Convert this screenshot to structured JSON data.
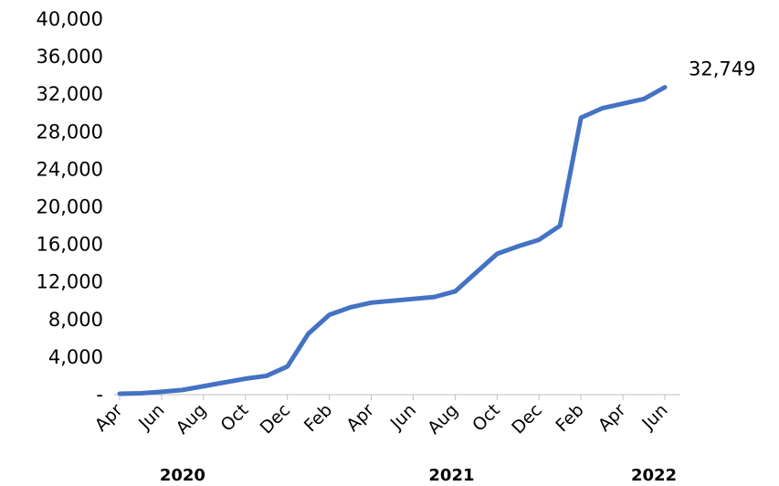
{
  "chart_data": {
    "type": "line",
    "title": "",
    "xlabel": "",
    "ylabel": "",
    "ylim": [
      0,
      40000
    ],
    "y_ticks": [
      0,
      4000,
      8000,
      12000,
      16000,
      20000,
      24000,
      28000,
      32000,
      36000,
      40000
    ],
    "y_tick_labels": [
      "-",
      "4,000",
      "8,000",
      "12,000",
      "16,000",
      "20,000",
      "24,000",
      "28,000",
      "32,000",
      "36,000",
      "40,000"
    ],
    "x_tick_labels": [
      "Apr",
      "Jun",
      "Aug",
      "Oct",
      "Dec",
      "Feb",
      "Apr",
      "Jun",
      "Aug",
      "Oct",
      "Dec",
      "Feb",
      "Apr",
      "Jun"
    ],
    "x_tick_dates": [
      "2020-04",
      "2020-06",
      "2020-08",
      "2020-10",
      "2020-12",
      "2021-02",
      "2021-04",
      "2021-06",
      "2021-08",
      "2021-10",
      "2021-12",
      "2022-02",
      "2022-04",
      "2022-06"
    ],
    "year_labels": [
      "2020",
      "2021",
      "2022"
    ],
    "grid": false,
    "legend": "none",
    "end_label": "32,749",
    "series_color": "#4472C4",
    "series": [
      {
        "x": [
          "2020-04",
          "2020-05",
          "2020-06",
          "2020-07",
          "2020-08",
          "2020-09",
          "2020-10",
          "2020-11",
          "2020-12",
          "2021-01",
          "2021-02",
          "2021-03",
          "2021-04",
          "2021-05",
          "2021-06",
          "2021-07",
          "2021-08",
          "2021-09",
          "2021-10",
          "2021-11",
          "2021-12",
          "2022-01",
          "2022-02",
          "2022-03",
          "2022-04",
          "2022-05",
          "2022-06"
        ],
        "y": [
          100,
          150,
          300,
          500,
          900,
          1300,
          1700,
          2000,
          3000,
          6500,
          8500,
          9300,
          9800,
          10000,
          10200,
          10400,
          11000,
          13000,
          15000,
          15800,
          16500,
          18000,
          29500,
          30500,
          31000,
          31500,
          32749
        ]
      }
    ]
  }
}
